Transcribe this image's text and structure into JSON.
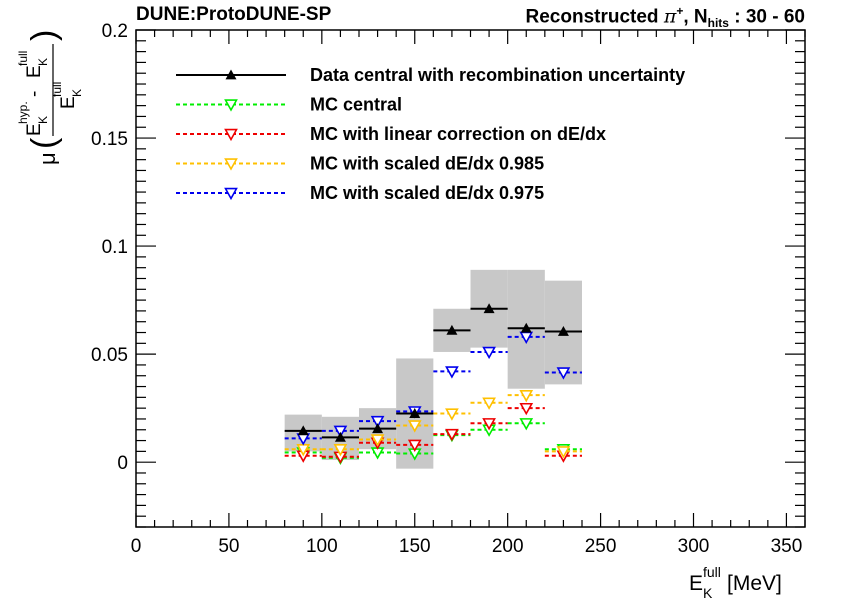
{
  "header": {
    "left_title": "DUNE:ProtoDUNE-SP",
    "right_title_prefix": "Reconstructed ",
    "right_title_particle": "π",
    "right_title_charge": "+",
    "right_title_mid": ", N",
    "right_title_sub": "hits",
    "right_title_suffix": " : 30 - 60"
  },
  "axes": {
    "xlabel_main": "E",
    "xlabel_sub": "K",
    "xlabel_sup": "full",
    "xlabel_unit": " [MeV]",
    "ylabel_mu": "μ",
    "ylabel_num_E": "E",
    "ylabel_num_sub": "K",
    "ylabel_num_sup": "hyp.",
    "ylabel_num_minus": " - ",
    "ylabel_num_E2": "E",
    "ylabel_num_sub2": "K",
    "ylabel_num_sup2": "full",
    "ylabel_den_E": "E",
    "ylabel_den_sub": "K",
    "ylabel_den_sup": "full"
  },
  "chart_data": {
    "type": "scatter",
    "xlim": [
      0,
      360
    ],
    "ylim": [
      -0.03,
      0.2
    ],
    "x_ticks": [
      0,
      50,
      100,
      150,
      200,
      250,
      300,
      350
    ],
    "x_tick_labels": [
      "0",
      "50",
      "100",
      "150",
      "200",
      "250",
      "300",
      "350"
    ],
    "y_ticks": [
      0,
      0.05,
      0.1,
      0.15,
      0.2
    ],
    "y_tick_labels": [
      "0",
      "0.05",
      "0.1",
      "0.15",
      "0.2"
    ],
    "bins": [
      [
        80,
        100
      ],
      [
        100,
        120
      ],
      [
        120,
        140
      ],
      [
        140,
        160
      ],
      [
        160,
        180
      ],
      [
        180,
        200
      ],
      [
        200,
        220
      ],
      [
        220,
        240
      ]
    ],
    "band": {
      "name": "recombination uncertainty",
      "color": "#c8c8c8",
      "low": [
        0.005,
        0.001,
        0.006,
        -0.003,
        0.051,
        0.053,
        0.034,
        0.036
      ],
      "high": [
        0.022,
        0.021,
        0.025,
        0.048,
        0.071,
        0.089,
        0.089,
        0.084
      ]
    },
    "series": [
      {
        "name": "Data central with recombination uncertainty",
        "color": "#000000",
        "style": "solid",
        "marker": "triangle-up",
        "values": [
          0.0145,
          0.0115,
          0.0155,
          0.0225,
          0.061,
          0.071,
          0.062,
          0.0605
        ]
      },
      {
        "name": "MC central",
        "color": "#00ee00",
        "style": "dashed",
        "marker": "triangle-down",
        "values": [
          0.0045,
          0.002,
          0.0045,
          0.004,
          0.0125,
          0.015,
          0.018,
          0.006
        ]
      },
      {
        "name": "MC with linear correction on dE/dx",
        "color": "#ee0000",
        "style": "dashed",
        "marker": "triangle-down",
        "values": [
          0.003,
          0.0025,
          0.009,
          0.008,
          0.013,
          0.018,
          0.025,
          0.003
        ]
      },
      {
        "name": "MC with scaled dE/dx 0.985",
        "color": "#ffc000",
        "style": "dashed",
        "marker": "triangle-down",
        "values": [
          0.006,
          0.006,
          0.0105,
          0.017,
          0.0225,
          0.0275,
          0.031,
          0.005
        ]
      },
      {
        "name": "MC with scaled dE/dx 0.975",
        "color": "#0000ee",
        "style": "dashed",
        "marker": "triangle-down",
        "values": [
          0.011,
          0.0145,
          0.019,
          0.0235,
          0.042,
          0.051,
          0.058,
          0.0415
        ]
      }
    ],
    "legend_position": "top-left"
  }
}
